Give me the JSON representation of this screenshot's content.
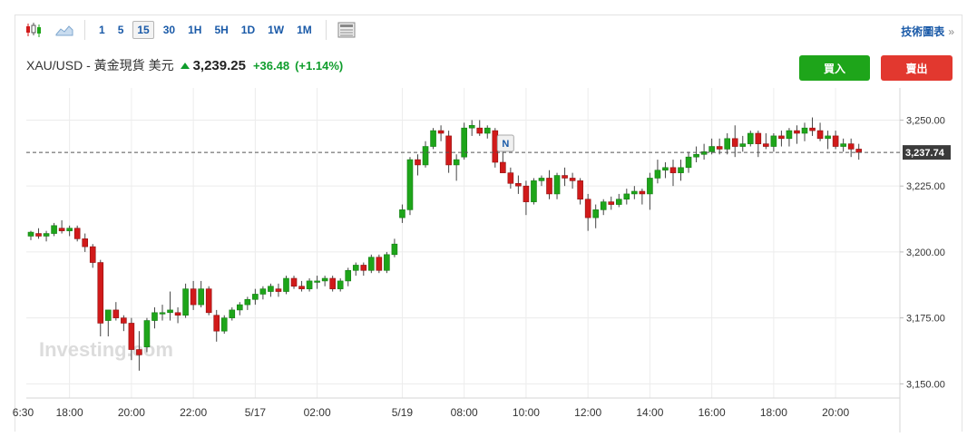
{
  "toolbar": {
    "intervals": [
      "1",
      "5",
      "15",
      "30",
      "1H",
      "5H",
      "1D",
      "1W",
      "1M"
    ],
    "active_interval": "15",
    "tech_label": "技術圖表",
    "tech_arrow": "»"
  },
  "header": {
    "symbol": "XAU/USD - 黃金現貨 美元",
    "price": "3,239.25",
    "change": "+36.48",
    "change_pct": "(+1.14%)"
  },
  "buttons": {
    "buy": "買入",
    "sell": "賣出"
  },
  "colors": {
    "up": "#1ea51a",
    "down": "#d11a1a",
    "accent": "#1a5aa8",
    "change": "#0f9d2c"
  },
  "chart_data": {
    "type": "candlestick",
    "watermark": "Investing.com",
    "ylim": [
      3146,
      3256
    ],
    "yticks": [
      3150,
      3175,
      3200,
      3225,
      3250
    ],
    "ytick_labels": [
      "3,150.00",
      "3,175.00",
      "3,200.00",
      "3,225.00",
      "3,250.00"
    ],
    "xticks": [
      {
        "i": -1,
        "label": "6:30"
      },
      {
        "i": 5,
        "label": "18:00"
      },
      {
        "i": 13,
        "label": "20:00"
      },
      {
        "i": 21,
        "label": "22:00"
      },
      {
        "i": 29,
        "label": "5/17"
      },
      {
        "i": 37,
        "label": "02:00"
      },
      {
        "i": 48,
        "label": "5/19"
      },
      {
        "i": 56,
        "label": "08:00"
      },
      {
        "i": 64,
        "label": "10:00"
      },
      {
        "i": 72,
        "label": "12:00"
      },
      {
        "i": 80,
        "label": "14:00"
      },
      {
        "i": 88,
        "label": "16:00"
      },
      {
        "i": 96,
        "label": "18:00"
      },
      {
        "i": 104,
        "label": "20:00"
      }
    ],
    "current_price": 3237.74,
    "current_label": "3,237.74",
    "news_marker": {
      "i": 61,
      "label": "N"
    },
    "candles": [
      [
        3206,
        3208,
        3204.5,
        3207.5
      ],
      [
        3207,
        3209,
        3205,
        3206
      ],
      [
        3206,
        3208,
        3204,
        3207
      ],
      [
        3207,
        3211,
        3206,
        3210
      ],
      [
        3209,
        3212,
        3207,
        3208
      ],
      [
        3208,
        3210,
        3206,
        3209
      ],
      [
        3209,
        3210,
        3204,
        3205
      ],
      [
        3205,
        3207,
        3200,
        3202
      ],
      [
        3202,
        3203,
        3194,
        3196
      ],
      [
        3196,
        3197,
        3168,
        3173
      ],
      [
        3174,
        3178,
        3168,
        3178
      ],
      [
        3178,
        3181,
        3174,
        3175
      ],
      [
        3175,
        3176,
        3170,
        3173
      ],
      [
        3173,
        3175,
        3159,
        3163
      ],
      [
        3163,
        3170,
        3155,
        3161
      ],
      [
        3164,
        3175,
        3162,
        3174
      ],
      [
        3174,
        3179,
        3171,
        3177
      ],
      [
        3177,
        3180,
        3174,
        3177
      ],
      [
        3177,
        3185,
        3174,
        3178
      ],
      [
        3177,
        3179,
        3173,
        3176
      ],
      [
        3176,
        3188,
        3175,
        3186
      ],
      [
        3186,
        3189,
        3178,
        3180
      ],
      [
        3180,
        3189,
        3179,
        3186
      ],
      [
        3186,
        3187,
        3176,
        3177
      ],
      [
        3176,
        3178,
        3166,
        3170
      ],
      [
        3170,
        3176,
        3169,
        3175
      ],
      [
        3175,
        3179,
        3174,
        3178
      ],
      [
        3178,
        3181,
        3176,
        3180
      ],
      [
        3180,
        3183,
        3178,
        3182
      ],
      [
        3182,
        3186,
        3180,
        3184
      ],
      [
        3184,
        3187,
        3182,
        3186
      ],
      [
        3185,
        3188,
        3183,
        3187
      ],
      [
        3186,
        3188,
        3183,
        3185
      ],
      [
        3185,
        3191,
        3184,
        3190
      ],
      [
        3190,
        3191,
        3186,
        3187
      ],
      [
        3187,
        3189,
        3185,
        3186
      ],
      [
        3186,
        3190,
        3185,
        3189
      ],
      [
        3189,
        3191,
        3186,
        3189
      ],
      [
        3189,
        3191,
        3187,
        3190
      ],
      [
        3190,
        3191,
        3185,
        3186
      ],
      [
        3186,
        3190,
        3185,
        3189
      ],
      [
        3189,
        3194,
        3187,
        3193
      ],
      [
        3193,
        3196,
        3191,
        3195
      ],
      [
        3195,
        3196,
        3191,
        3193
      ],
      [
        3193,
        3199,
        3192,
        3198
      ],
      [
        3198,
        3199,
        3192,
        3193
      ],
      [
        3193,
        3200,
        3192,
        3199
      ],
      [
        3199,
        3205,
        3198,
        3203
      ],
      [
        3213,
        3218,
        3211,
        3216
      ],
      [
        3216,
        3236,
        3214,
        3235
      ],
      [
        3235,
        3237,
        3229,
        3233
      ],
      [
        3233,
        3242,
        3232,
        3240
      ],
      [
        3240,
        3247,
        3239,
        3246
      ],
      [
        3246,
        3248,
        3242,
        3245
      ],
      [
        3244,
        3246,
        3230,
        3233
      ],
      [
        3233,
        3237,
        3227,
        3235
      ],
      [
        3236,
        3249,
        3235,
        3247
      ],
      [
        3247,
        3250,
        3244,
        3248
      ],
      [
        3247,
        3250,
        3244,
        3245
      ],
      [
        3245,
        3248,
        3243,
        3247
      ],
      [
        3246,
        3247,
        3232,
        3234
      ],
      [
        3234,
        3239,
        3231,
        3230
      ],
      [
        3230,
        3232,
        3224,
        3226
      ],
      [
        3226,
        3229,
        3222,
        3225
      ],
      [
        3225,
        3227,
        3214,
        3219
      ],
      [
        3219,
        3228,
        3218,
        3227
      ],
      [
        3227,
        3229,
        3225,
        3228
      ],
      [
        3228,
        3231,
        3220,
        3222
      ],
      [
        3222,
        3230,
        3220,
        3229
      ],
      [
        3229,
        3232,
        3225,
        3228
      ],
      [
        3228,
        3230,
        3224,
        3227
      ],
      [
        3227,
        3228,
        3218,
        3220
      ],
      [
        3220,
        3222,
        3208,
        3213
      ],
      [
        3213,
        3218,
        3209,
        3216
      ],
      [
        3216,
        3220,
        3214,
        3219
      ],
      [
        3219,
        3221,
        3216,
        3218
      ],
      [
        3218,
        3222,
        3217,
        3220
      ],
      [
        3220,
        3224,
        3218,
        3222
      ],
      [
        3222,
        3225,
        3220,
        3223
      ],
      [
        3223,
        3224,
        3218,
        3222
      ],
      [
        3222,
        3230,
        3216,
        3228
      ],
      [
        3228,
        3235,
        3226,
        3231
      ],
      [
        3231,
        3234,
        3228,
        3232
      ],
      [
        3232,
        3235,
        3225,
        3230
      ],
      [
        3230,
        3235,
        3227,
        3232
      ],
      [
        3232,
        3238,
        3230,
        3236
      ],
      [
        3236,
        3240,
        3234,
        3237
      ],
      [
        3237,
        3241,
        3235,
        3238
      ],
      [
        3238,
        3243,
        3237,
        3240
      ],
      [
        3240,
        3243,
        3237,
        3239
      ],
      [
        3239,
        3245,
        3237,
        3243
      ],
      [
        3243,
        3248,
        3236,
        3240
      ],
      [
        3240,
        3244,
        3238,
        3241
      ],
      [
        3241,
        3246,
        3240,
        3245
      ],
      [
        3245,
        3246,
        3236,
        3241
      ],
      [
        3241,
        3245,
        3239,
        3240
      ],
      [
        3240,
        3245,
        3238,
        3244
      ],
      [
        3244,
        3246,
        3240,
        3243
      ],
      [
        3243,
        3247,
        3240,
        3246
      ],
      [
        3246,
        3248,
        3241,
        3245
      ],
      [
        3245,
        3249,
        3242,
        3247
      ],
      [
        3247,
        3251,
        3244,
        3246
      ],
      [
        3246,
        3249,
        3242,
        3243
      ],
      [
        3243,
        3246,
        3239,
        3244
      ],
      [
        3244,
        3246,
        3239,
        3240
      ],
      [
        3240,
        3243,
        3238,
        3241
      ],
      [
        3241,
        3243,
        3236,
        3239
      ],
      [
        3239,
        3241,
        3235,
        3237.74
      ]
    ]
  }
}
